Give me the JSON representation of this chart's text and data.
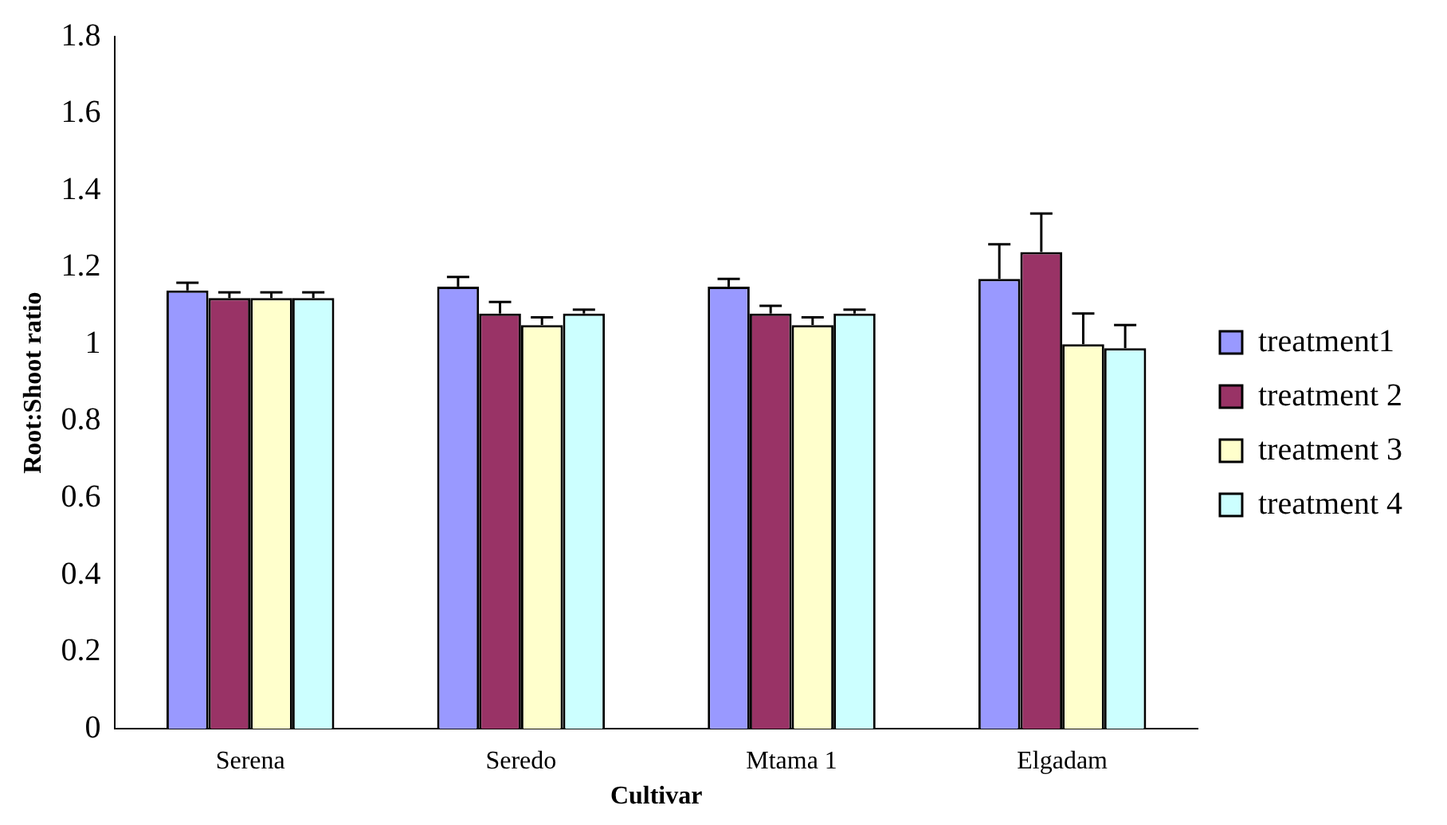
{
  "chart_data": {
    "type": "bar",
    "xlabel": "Cultivar",
    "ylabel": "Root:Shoot ratio",
    "categories": [
      "Serena",
      "Seredo",
      "Mtama 1",
      "Elgadam"
    ],
    "series": [
      {
        "name": "treatment1",
        "color": "#9999ff",
        "values": [
          1.14,
          1.15,
          1.15,
          1.17
        ],
        "errors": [
          [
            1.14,
            1.16
          ],
          [
            1.15,
            1.175
          ],
          [
            1.15,
            1.17
          ],
          [
            1.17,
            1.26
          ]
        ]
      },
      {
        "name": "treatment 2",
        "color": "#993366",
        "values": [
          1.12,
          1.08,
          1.08,
          1.24
        ],
        "errors": [
          [
            1.12,
            1.135
          ],
          [
            1.08,
            1.11
          ],
          [
            1.08,
            1.1
          ],
          [
            1.24,
            1.34
          ]
        ]
      },
      {
        "name": "treatment 3",
        "color": "#ffffcc",
        "values": [
          1.12,
          1.05,
          1.05,
          1.0
        ],
        "errors": [
          [
            1.12,
            1.135
          ],
          [
            1.05,
            1.07
          ],
          [
            1.05,
            1.07
          ],
          [
            1.0,
            1.08
          ]
        ]
      },
      {
        "name": "treatment 4",
        "color": "#ccffff",
        "values": [
          1.12,
          1.08,
          1.08,
          0.99
        ],
        "errors": [
          [
            1.12,
            1.135
          ],
          [
            1.08,
            1.09
          ],
          [
            1.08,
            1.09
          ],
          [
            0.99,
            1.05
          ]
        ]
      }
    ],
    "ylim": [
      0,
      1.8
    ],
    "yticks": [
      0,
      0.2,
      0.4,
      0.6,
      0.8,
      1,
      1.2,
      1.4,
      1.6,
      1.8
    ],
    "grid": false,
    "legend": "right"
  }
}
